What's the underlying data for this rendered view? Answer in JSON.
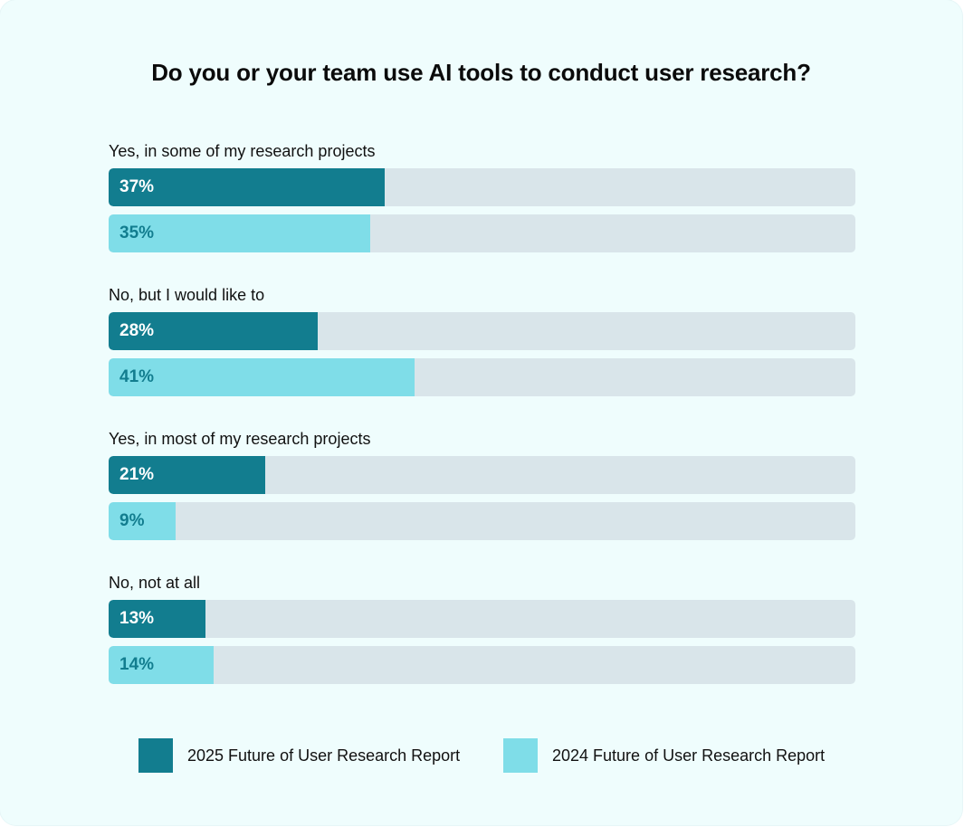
{
  "chart_data": {
    "type": "bar",
    "orientation": "horizontal",
    "title": "Do you or your team use AI tools to conduct user research?",
    "categories": [
      "Yes, in some of my research projects",
      "No, but I would like to",
      "Yes, in most of my research projects",
      "No, not at all"
    ],
    "series": [
      {
        "name": "2025 Future of User Research Report",
        "values": [
          37,
          28,
          21,
          13
        ],
        "labels": [
          "37%",
          "28%",
          "21%",
          "13%"
        ],
        "color": "#127d8f"
      },
      {
        "name": "2024 Future of User Research Report",
        "values": [
          35,
          41,
          9,
          14
        ],
        "labels": [
          "35%",
          "41%",
          "9%",
          "14%"
        ],
        "color": "#7fdde8"
      }
    ],
    "xlim": [
      0,
      100
    ],
    "unit": "%",
    "grid": false,
    "legend": "bottom-center"
  }
}
